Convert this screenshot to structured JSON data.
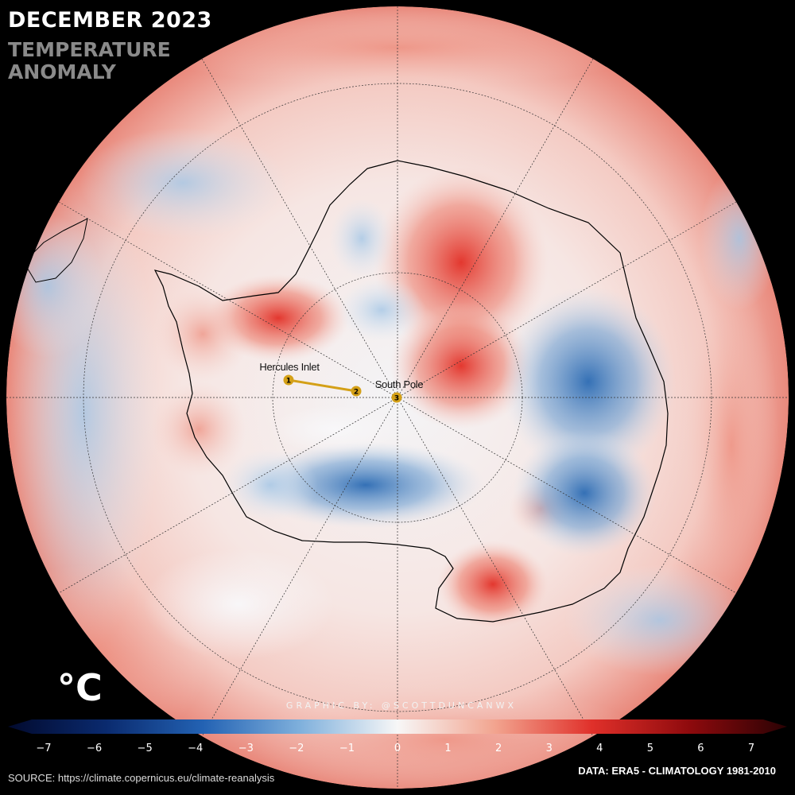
{
  "title": {
    "line1": "DECEMBER 2023",
    "line2": "TEMPERATURE\nANOMALY"
  },
  "colorbar": {
    "unit": "°C",
    "ticks": [
      "−7",
      "−6",
      "−5",
      "−4",
      "−3",
      "−2",
      "−1",
      "0",
      "1",
      "2",
      "3",
      "4",
      "5",
      "6",
      "7"
    ],
    "range": [
      -7,
      7
    ],
    "colors": [
      "#020a2e",
      "#0a2a6e",
      "#2362b3",
      "#7fb0dc",
      "#f7f7f7",
      "#f2a48f",
      "#e0302a",
      "#8e0a0d",
      "#2a0204"
    ]
  },
  "map": {
    "projection": "south-polar-stereographic",
    "markers": [
      {
        "label": "1",
        "color": "#d4a017"
      },
      {
        "label": "2",
        "color": "#d4a017"
      },
      {
        "label": "3",
        "color": "#d4a017"
      }
    ],
    "place_labels": {
      "hercules_inlet": "Hercules Inlet",
      "south_pole": "South Pole"
    },
    "route_color": "#d4a017",
    "graticule_color": "#333333"
  },
  "credit": "GRAPHIC BY: @SCOTTDUNCANWX",
  "source": "SOURCE: https://climate.copernicus.eu/climate-reanalysis",
  "data_note": "DATA: ERA5 - CLIMATOLOGY 1981-2010"
}
